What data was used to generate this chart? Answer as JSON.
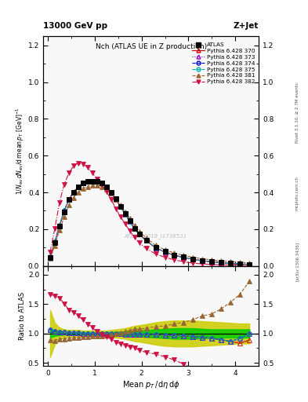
{
  "title_top": "13000 GeV pp",
  "title_right": "Z+Jet",
  "plot_title": "Nch (ATLAS UE in Z production)",
  "xlabel": "Mean $p_T$/d$\\eta$ d$\\phi$",
  "ylabel_main": "$1/N_{ev}\\,dN_{ev}/$d mean $p_T$ [GeV]$^{-1}$",
  "ylabel_ratio": "Ratio to ATLAS",
  "watermark": "ATLAS_2019_I1736531",
  "right_label_top": "Rivet 3.1.10, ≥ 2.7M events",
  "right_label_mid": "mcplots.cern.ch",
  "right_label_bot": "[arXiv:1306.3436]",
  "xlim": [
    -0.1,
    4.5
  ],
  "ylim_main": [
    0.0,
    1.25
  ],
  "ylim_ratio": [
    0.45,
    2.15
  ],
  "series": [
    {
      "label": "ATLAS",
      "color": "#000000",
      "marker": "s",
      "markersize": 4,
      "linestyle": "none",
      "filled": true,
      "is_data": true,
      "x": [
        0.05,
        0.15,
        0.25,
        0.35,
        0.45,
        0.55,
        0.65,
        0.75,
        0.85,
        0.95,
        1.05,
        1.15,
        1.25,
        1.35,
        1.45,
        1.55,
        1.65,
        1.75,
        1.85,
        1.95,
        2.1,
        2.3,
        2.5,
        2.7,
        2.9,
        3.1,
        3.3,
        3.5,
        3.7,
        3.9,
        4.1,
        4.3
      ],
      "y": [
        0.045,
        0.125,
        0.215,
        0.295,
        0.36,
        0.4,
        0.43,
        0.45,
        0.46,
        0.46,
        0.46,
        0.45,
        0.43,
        0.4,
        0.365,
        0.325,
        0.285,
        0.245,
        0.205,
        0.175,
        0.14,
        0.1,
        0.078,
        0.06,
        0.048,
        0.038,
        0.03,
        0.024,
        0.019,
        0.015,
        0.012,
        0.009
      ],
      "yerr": [
        0.003,
        0.005,
        0.006,
        0.006,
        0.006,
        0.006,
        0.006,
        0.006,
        0.006,
        0.006,
        0.006,
        0.006,
        0.006,
        0.006,
        0.006,
        0.006,
        0.006,
        0.006,
        0.006,
        0.005,
        0.005,
        0.004,
        0.003,
        0.003,
        0.002,
        0.002,
        0.002,
        0.002,
        0.001,
        0.001,
        0.001,
        0.001
      ]
    },
    {
      "label": "Pythia 6.428 370",
      "color": "#cc0000",
      "marker": "^",
      "markersize": 4,
      "linestyle": "-",
      "filled": false,
      "is_data": false,
      "x": [
        0.05,
        0.15,
        0.25,
        0.35,
        0.45,
        0.55,
        0.65,
        0.75,
        0.85,
        0.95,
        1.05,
        1.15,
        1.25,
        1.35,
        1.45,
        1.55,
        1.65,
        1.75,
        1.85,
        1.95,
        2.1,
        2.3,
        2.5,
        2.7,
        2.9,
        3.1,
        3.3,
        3.5,
        3.7,
        3.9,
        4.1,
        4.3
      ],
      "y": [
        0.048,
        0.13,
        0.22,
        0.3,
        0.362,
        0.402,
        0.432,
        0.45,
        0.46,
        0.46,
        0.46,
        0.45,
        0.43,
        0.4,
        0.362,
        0.322,
        0.282,
        0.242,
        0.202,
        0.172,
        0.138,
        0.098,
        0.076,
        0.058,
        0.046,
        0.036,
        0.028,
        0.022,
        0.017,
        0.013,
        0.01,
        0.008
      ]
    },
    {
      "label": "Pythia 6.428 373",
      "color": "#9900cc",
      "marker": "^",
      "markersize": 4,
      "linestyle": ":",
      "filled": false,
      "is_data": false,
      "x": [
        0.05,
        0.15,
        0.25,
        0.35,
        0.45,
        0.55,
        0.65,
        0.75,
        0.85,
        0.95,
        1.05,
        1.15,
        1.25,
        1.35,
        1.45,
        1.55,
        1.65,
        1.75,
        1.85,
        1.95,
        2.1,
        2.3,
        2.5,
        2.7,
        2.9,
        3.1,
        3.3,
        3.5,
        3.7,
        3.9,
        4.1,
        4.3
      ],
      "y": [
        0.048,
        0.13,
        0.22,
        0.3,
        0.362,
        0.402,
        0.432,
        0.45,
        0.46,
        0.46,
        0.46,
        0.45,
        0.43,
        0.4,
        0.362,
        0.322,
        0.282,
        0.242,
        0.202,
        0.172,
        0.138,
        0.098,
        0.076,
        0.058,
        0.046,
        0.036,
        0.028,
        0.022,
        0.017,
        0.013,
        0.011,
        0.009
      ]
    },
    {
      "label": "Pythia 6.428 374",
      "color": "#0000cc",
      "marker": "o",
      "markersize": 4,
      "linestyle": "--",
      "filled": false,
      "is_data": false,
      "x": [
        0.05,
        0.15,
        0.25,
        0.35,
        0.45,
        0.55,
        0.65,
        0.75,
        0.85,
        0.95,
        1.05,
        1.15,
        1.25,
        1.35,
        1.45,
        1.55,
        1.65,
        1.75,
        1.85,
        1.95,
        2.1,
        2.3,
        2.5,
        2.7,
        2.9,
        3.1,
        3.3,
        3.5,
        3.7,
        3.9,
        4.1,
        4.3
      ],
      "y": [
        0.048,
        0.13,
        0.22,
        0.3,
        0.362,
        0.402,
        0.432,
        0.45,
        0.46,
        0.46,
        0.46,
        0.45,
        0.43,
        0.4,
        0.362,
        0.322,
        0.282,
        0.242,
        0.202,
        0.172,
        0.138,
        0.098,
        0.076,
        0.058,
        0.046,
        0.036,
        0.028,
        0.022,
        0.017,
        0.013,
        0.011,
        0.009
      ]
    },
    {
      "label": "Pythia 6.428 375",
      "color": "#00aaaa",
      "marker": "o",
      "markersize": 4,
      "linestyle": "--",
      "filled": false,
      "is_data": false,
      "x": [
        0.05,
        0.15,
        0.25,
        0.35,
        0.45,
        0.55,
        0.65,
        0.75,
        0.85,
        0.95,
        1.05,
        1.15,
        1.25,
        1.35,
        1.45,
        1.55,
        1.65,
        1.75,
        1.85,
        1.95,
        2.1,
        2.3,
        2.5,
        2.7,
        2.9,
        3.1,
        3.3,
        3.5,
        3.7,
        3.9,
        4.1,
        4.3
      ],
      "y": [
        0.048,
        0.13,
        0.22,
        0.3,
        0.362,
        0.402,
        0.432,
        0.45,
        0.46,
        0.46,
        0.46,
        0.45,
        0.43,
        0.4,
        0.362,
        0.322,
        0.282,
        0.242,
        0.202,
        0.172,
        0.138,
        0.098,
        0.076,
        0.058,
        0.046,
        0.036,
        0.028,
        0.022,
        0.017,
        0.013,
        0.011,
        0.009
      ]
    },
    {
      "label": "Pythia 6.428 381",
      "color": "#996633",
      "marker": "^",
      "markersize": 4,
      "linestyle": "--",
      "filled": true,
      "is_data": false,
      "x": [
        0.05,
        0.15,
        0.25,
        0.35,
        0.45,
        0.55,
        0.65,
        0.75,
        0.85,
        0.95,
        1.05,
        1.15,
        1.25,
        1.35,
        1.45,
        1.55,
        1.65,
        1.75,
        1.85,
        1.95,
        2.1,
        2.3,
        2.5,
        2.7,
        2.9,
        3.1,
        3.3,
        3.5,
        3.7,
        3.9,
        4.1,
        4.3
      ],
      "y": [
        0.04,
        0.11,
        0.195,
        0.268,
        0.33,
        0.372,
        0.402,
        0.422,
        0.432,
        0.44,
        0.44,
        0.432,
        0.418,
        0.395,
        0.362,
        0.33,
        0.295,
        0.258,
        0.22,
        0.188,
        0.152,
        0.112,
        0.088,
        0.07,
        0.057,
        0.047,
        0.039,
        0.032,
        0.027,
        0.023,
        0.02,
        0.017
      ]
    },
    {
      "label": "Pythia 6.428 382",
      "color": "#cc1144",
      "marker": "v",
      "markersize": 4,
      "linestyle": "-.",
      "filled": true,
      "is_data": false,
      "x": [
        0.05,
        0.15,
        0.25,
        0.35,
        0.45,
        0.55,
        0.65,
        0.75,
        0.85,
        0.95,
        1.05,
        1.15,
        1.25,
        1.35,
        1.45,
        1.55,
        1.65,
        1.75,
        1.85,
        1.95,
        2.1,
        2.3,
        2.5,
        2.7,
        2.9,
        3.1,
        3.3,
        3.5,
        3.7,
        3.9,
        4.1,
        4.3
      ],
      "y": [
        0.075,
        0.205,
        0.345,
        0.445,
        0.505,
        0.545,
        0.558,
        0.555,
        0.535,
        0.505,
        0.475,
        0.445,
        0.405,
        0.362,
        0.312,
        0.268,
        0.228,
        0.19,
        0.155,
        0.125,
        0.095,
        0.065,
        0.047,
        0.033,
        0.023,
        0.015,
        0.011,
        0.008,
        0.006,
        0.005,
        0.004,
        0.003
      ]
    }
  ],
  "band_inner_lo": [
    0.93,
    0.96,
    0.97,
    0.98,
    0.98,
    0.98,
    0.98,
    0.98,
    0.98,
    0.98,
    0.98,
    0.98,
    0.98,
    0.98,
    0.97,
    0.97,
    0.96,
    0.96,
    0.95,
    0.95,
    0.94,
    0.93,
    0.92,
    0.91,
    0.91,
    0.91,
    0.92,
    0.93,
    0.93,
    0.93,
    0.93,
    0.93
  ],
  "band_inner_hi": [
    1.07,
    1.04,
    1.03,
    1.02,
    1.02,
    1.02,
    1.02,
    1.02,
    1.02,
    1.02,
    1.02,
    1.02,
    1.02,
    1.02,
    1.03,
    1.03,
    1.04,
    1.04,
    1.05,
    1.05,
    1.06,
    1.07,
    1.08,
    1.09,
    1.09,
    1.09,
    1.08,
    1.07,
    1.07,
    1.07,
    1.07,
    1.07
  ],
  "band_outer_lo": [
    0.6,
    0.82,
    0.9,
    0.93,
    0.94,
    0.94,
    0.94,
    0.95,
    0.95,
    0.95,
    0.95,
    0.95,
    0.95,
    0.94,
    0.93,
    0.92,
    0.91,
    0.89,
    0.87,
    0.86,
    0.84,
    0.81,
    0.79,
    0.78,
    0.78,
    0.78,
    0.79,
    0.8,
    0.81,
    0.82,
    0.83,
    0.83
  ],
  "band_outer_hi": [
    1.4,
    1.18,
    1.1,
    1.07,
    1.06,
    1.06,
    1.06,
    1.05,
    1.05,
    1.05,
    1.05,
    1.05,
    1.05,
    1.06,
    1.07,
    1.08,
    1.09,
    1.11,
    1.13,
    1.14,
    1.16,
    1.19,
    1.21,
    1.22,
    1.22,
    1.22,
    1.21,
    1.2,
    1.19,
    1.18,
    1.17,
    1.17
  ],
  "band_inner_color": "#00cc00",
  "band_outer_color": "#cccc00",
  "bg_color": "#f0f0f0"
}
